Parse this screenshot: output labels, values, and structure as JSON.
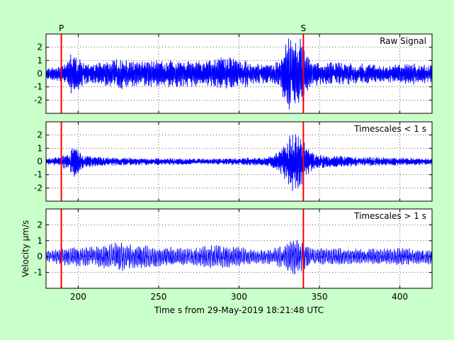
{
  "figure": {
    "background": "#c9ffc9",
    "trace_color": "#0000ff",
    "marker_color": "#ff0000"
  },
  "chart_data": [
    {
      "type": "line",
      "title": "Raw Signal",
      "xlim": [
        180,
        420
      ],
      "ylim": [
        -3,
        3
      ],
      "yticks": [
        -2,
        -1,
        0,
        1,
        2
      ],
      "xticks": [
        200,
        250,
        300,
        350,
        400
      ],
      "grid": true,
      "series": [
        {
          "env": [
            [
              180,
              0.35
            ],
            [
              187,
              0.55
            ],
            [
              193,
              0.75
            ],
            [
              196,
              1.5
            ],
            [
              199,
              1.3
            ],
            [
              204,
              0.8
            ],
            [
              210,
              0.7
            ],
            [
              215,
              0.9
            ],
            [
              220,
              1.0
            ],
            [
              226,
              1.2
            ],
            [
              232,
              0.9
            ],
            [
              240,
              0.9
            ],
            [
              250,
              0.9
            ],
            [
              260,
              1.0
            ],
            [
              270,
              0.9
            ],
            [
              280,
              0.9
            ],
            [
              290,
              1.2
            ],
            [
              300,
              1.0
            ],
            [
              310,
              0.8
            ],
            [
              320,
              0.6
            ],
            [
              325,
              1.0
            ],
            [
              330,
              2.4
            ],
            [
              334,
              2.8
            ],
            [
              338,
              2.6
            ],
            [
              341,
              1.6
            ],
            [
              345,
              1.0
            ],
            [
              350,
              0.8
            ],
            [
              360,
              0.8
            ],
            [
              370,
              0.8
            ],
            [
              380,
              0.7
            ],
            [
              390,
              0.6
            ],
            [
              400,
              0.7
            ],
            [
              410,
              0.8
            ],
            [
              420,
              0.6
            ]
          ],
          "freq": 1.6,
          "seed": 11
        }
      ]
    },
    {
      "type": "line",
      "title": "Timescales < 1 s",
      "xlim": [
        180,
        420
      ],
      "ylim": [
        -3,
        3
      ],
      "yticks": [
        -2,
        -1,
        0,
        1,
        2
      ],
      "xticks": [
        200,
        250,
        300,
        350,
        400
      ],
      "grid": true,
      "series": [
        {
          "env": [
            [
              180,
              0.2
            ],
            [
              186,
              0.3
            ],
            [
              190,
              0.45
            ],
            [
              194,
              0.7
            ],
            [
              197,
              1.2
            ],
            [
              199,
              1.0
            ],
            [
              203,
              0.5
            ],
            [
              210,
              0.35
            ],
            [
              220,
              0.3
            ],
            [
              240,
              0.25
            ],
            [
              260,
              0.25
            ],
            [
              280,
              0.2
            ],
            [
              300,
              0.25
            ],
            [
              315,
              0.3
            ],
            [
              322,
              0.5
            ],
            [
              327,
              1.0
            ],
            [
              331,
              1.8
            ],
            [
              334,
              2.2
            ],
            [
              338,
              2.0
            ],
            [
              342,
              1.0
            ],
            [
              347,
              0.6
            ],
            [
              355,
              0.45
            ],
            [
              370,
              0.35
            ],
            [
              390,
              0.3
            ],
            [
              420,
              0.25
            ]
          ],
          "freq": 4.0,
          "seed": 23
        }
      ]
    },
    {
      "type": "line",
      "title": "Timescales > 1 s",
      "ylabel": "Velocity μm/s",
      "xlabel": "Time s from 29-May-2019 18:21:48 UTC",
      "xlim": [
        180,
        420
      ],
      "ylim": [
        -2,
        3
      ],
      "yticks": [
        -1,
        0,
        1,
        2
      ],
      "xticks": [
        200,
        250,
        300,
        350,
        400
      ],
      "grid": true,
      "series": [
        {
          "env": [
            [
              180,
              0.35
            ],
            [
              190,
              0.5
            ],
            [
              200,
              0.6
            ],
            [
              210,
              0.6
            ],
            [
              220,
              0.7
            ],
            [
              226,
              1.0
            ],
            [
              230,
              0.7
            ],
            [
              240,
              0.7
            ],
            [
              250,
              0.6
            ],
            [
              260,
              0.55
            ],
            [
              270,
              0.5
            ],
            [
              285,
              0.7
            ],
            [
              300,
              0.6
            ],
            [
              310,
              0.4
            ],
            [
              320,
              0.45
            ],
            [
              330,
              0.8
            ],
            [
              333,
              1.2
            ],
            [
              338,
              1.0
            ],
            [
              345,
              0.5
            ],
            [
              360,
              0.5
            ],
            [
              380,
              0.45
            ],
            [
              400,
              0.5
            ],
            [
              420,
              0.45
            ]
          ],
          "freq": 0.9,
          "seed": 37
        }
      ]
    }
  ],
  "picks": [
    {
      "label": "P",
      "x": 189.5
    },
    {
      "label": "S",
      "x": 340
    }
  ]
}
